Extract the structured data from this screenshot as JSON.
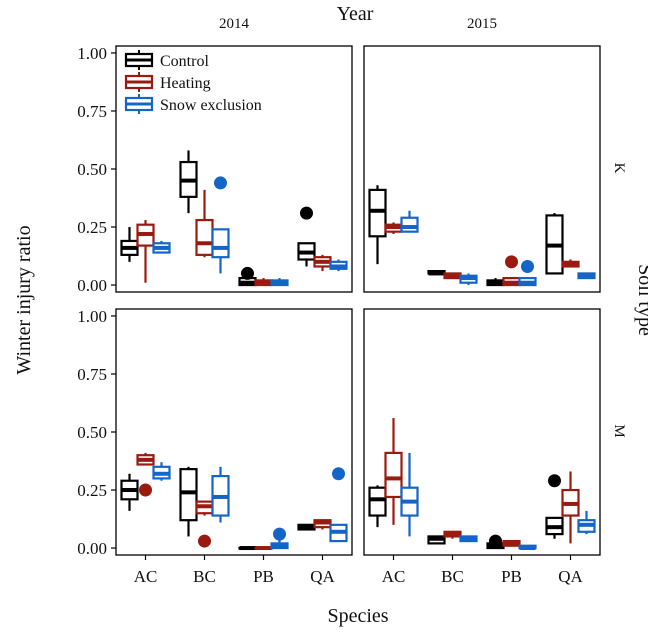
{
  "chart_data": {
    "type": "boxplot",
    "title": "",
    "column_facet_label": "Year",
    "row_facet_label": "Soil type",
    "columns": [
      "2014",
      "2015"
    ],
    "rows": [
      "K",
      "M"
    ],
    "xlabel": "Species",
    "ylabel": "Winter injury ratio",
    "categories": [
      "AC",
      "BC",
      "PB",
      "QA"
    ],
    "y_ticks": [
      "0.00",
      "0.25",
      "0.50",
      "0.75",
      "1.00"
    ],
    "ylim": [
      -0.03,
      1.03
    ],
    "grid": false,
    "legend_position": "top-left",
    "series": [
      {
        "name": "Control",
        "color": "#000000"
      },
      {
        "name": "Heating",
        "color": "#9b1a10"
      },
      {
        "name": "Snow exclusion",
        "color": "#1565c8"
      }
    ],
    "panels": [
      {
        "column": "2014",
        "row": "K",
        "boxes": [
          {
            "cat": "AC",
            "series": "Control",
            "min": 0.1,
            "q1": 0.13,
            "median": 0.16,
            "q3": 0.19,
            "max": 0.25,
            "outliers": []
          },
          {
            "cat": "AC",
            "series": "Heating",
            "min": 0.01,
            "q1": 0.17,
            "median": 0.22,
            "q3": 0.26,
            "max": 0.28,
            "outliers": []
          },
          {
            "cat": "AC",
            "series": "Snow exclusion",
            "min": 0.14,
            "q1": 0.14,
            "median": 0.16,
            "q3": 0.18,
            "max": 0.19,
            "outliers": []
          },
          {
            "cat": "BC",
            "series": "Control",
            "min": 0.31,
            "q1": 0.38,
            "median": 0.45,
            "q3": 0.53,
            "max": 0.58,
            "outliers": []
          },
          {
            "cat": "BC",
            "series": "Heating",
            "min": 0.12,
            "q1": 0.13,
            "median": 0.18,
            "q3": 0.28,
            "max": 0.41,
            "outliers": []
          },
          {
            "cat": "BC",
            "series": "Snow exclusion",
            "min": 0.05,
            "q1": 0.12,
            "median": 0.16,
            "q3": 0.24,
            "max": 0.24,
            "outliers": [
              0.44
            ]
          },
          {
            "cat": "PB",
            "series": "Control",
            "min": 0.0,
            "q1": 0.0,
            "median": 0.01,
            "q3": 0.03,
            "max": 0.03,
            "outliers": [
              0.05
            ]
          },
          {
            "cat": "PB",
            "series": "Heating",
            "min": 0.0,
            "q1": 0.0,
            "median": 0.01,
            "q3": 0.02,
            "max": 0.03,
            "outliers": []
          },
          {
            "cat": "PB",
            "series": "Snow exclusion",
            "min": 0.0,
            "q1": 0.0,
            "median": 0.01,
            "q3": 0.02,
            "max": 0.03,
            "outliers": []
          },
          {
            "cat": "QA",
            "series": "Control",
            "min": 0.08,
            "q1": 0.11,
            "median": 0.14,
            "q3": 0.18,
            "max": 0.18,
            "outliers": [
              0.31
            ]
          },
          {
            "cat": "QA",
            "series": "Heating",
            "min": 0.06,
            "q1": 0.08,
            "median": 0.1,
            "q3": 0.12,
            "max": 0.13,
            "outliers": []
          },
          {
            "cat": "QA",
            "series": "Snow exclusion",
            "min": 0.06,
            "q1": 0.07,
            "median": 0.08,
            "q3": 0.1,
            "max": 0.11,
            "outliers": []
          }
        ]
      },
      {
        "column": "2015",
        "row": "K",
        "boxes": [
          {
            "cat": "AC",
            "series": "Control",
            "min": 0.09,
            "q1": 0.21,
            "median": 0.32,
            "q3": 0.41,
            "max": 0.43,
            "outliers": []
          },
          {
            "cat": "AC",
            "series": "Heating",
            "min": 0.22,
            "q1": 0.23,
            "median": 0.25,
            "q3": 0.26,
            "max": 0.27,
            "outliers": []
          },
          {
            "cat": "AC",
            "series": "Snow exclusion",
            "min": 0.23,
            "q1": 0.23,
            "median": 0.25,
            "q3": 0.29,
            "max": 0.32,
            "outliers": []
          },
          {
            "cat": "BC",
            "series": "Control",
            "min": 0.05,
            "q1": 0.05,
            "median": 0.05,
            "q3": 0.06,
            "max": 0.06,
            "outliers": []
          },
          {
            "cat": "BC",
            "series": "Heating",
            "min": 0.03,
            "q1": 0.03,
            "median": 0.04,
            "q3": 0.05,
            "max": 0.05,
            "outliers": []
          },
          {
            "cat": "BC",
            "series": "Snow exclusion",
            "min": 0.0,
            "q1": 0.01,
            "median": 0.03,
            "q3": 0.04,
            "max": 0.05,
            "outliers": []
          },
          {
            "cat": "PB",
            "series": "Control",
            "min": 0.0,
            "q1": 0.0,
            "median": 0.01,
            "q3": 0.02,
            "max": 0.03,
            "outliers": []
          },
          {
            "cat": "PB",
            "series": "Heating",
            "min": 0.0,
            "q1": 0.0,
            "median": 0.01,
            "q3": 0.03,
            "max": 0.03,
            "outliers": [
              0.1
            ]
          },
          {
            "cat": "PB",
            "series": "Snow exclusion",
            "min": 0.0,
            "q1": 0.0,
            "median": 0.01,
            "q3": 0.03,
            "max": 0.03,
            "outliers": [
              0.08
            ]
          },
          {
            "cat": "QA",
            "series": "Control",
            "min": 0.05,
            "q1": 0.05,
            "median": 0.17,
            "q3": 0.3,
            "max": 0.31,
            "outliers": []
          },
          {
            "cat": "QA",
            "series": "Heating",
            "min": 0.08,
            "q1": 0.08,
            "median": 0.09,
            "q3": 0.1,
            "max": 0.11,
            "outliers": []
          },
          {
            "cat": "QA",
            "series": "Snow exclusion",
            "min": 0.03,
            "q1": 0.03,
            "median": 0.04,
            "q3": 0.05,
            "max": 0.05,
            "outliers": []
          }
        ]
      },
      {
        "column": "2014",
        "row": "M",
        "boxes": [
          {
            "cat": "AC",
            "series": "Control",
            "min": 0.16,
            "q1": 0.21,
            "median": 0.25,
            "q3": 0.29,
            "max": 0.32,
            "outliers": []
          },
          {
            "cat": "AC",
            "series": "Heating",
            "min": 0.36,
            "q1": 0.36,
            "median": 0.38,
            "q3": 0.4,
            "max": 0.41,
            "outliers": [
              0.25
            ]
          },
          {
            "cat": "AC",
            "series": "Snow exclusion",
            "min": 0.29,
            "q1": 0.3,
            "median": 0.32,
            "q3": 0.35,
            "max": 0.37,
            "outliers": []
          },
          {
            "cat": "BC",
            "series": "Control",
            "min": 0.05,
            "q1": 0.12,
            "median": 0.24,
            "q3": 0.34,
            "max": 0.35,
            "outliers": []
          },
          {
            "cat": "BC",
            "series": "Heating",
            "min": 0.14,
            "q1": 0.15,
            "median": 0.18,
            "q3": 0.2,
            "max": 0.2,
            "outliers": [
              0.03
            ]
          },
          {
            "cat": "BC",
            "series": "Snow exclusion",
            "min": 0.11,
            "q1": 0.14,
            "median": 0.22,
            "q3": 0.31,
            "max": 0.35,
            "outliers": []
          },
          {
            "cat": "PB",
            "series": "Control",
            "min": 0.0,
            "q1": 0.0,
            "median": 0.0,
            "q3": 0.0,
            "max": 0.0,
            "outliers": []
          },
          {
            "cat": "PB",
            "series": "Heating",
            "min": 0.0,
            "q1": 0.0,
            "median": 0.0,
            "q3": 0.0,
            "max": 0.0,
            "outliers": []
          },
          {
            "cat": "PB",
            "series": "Snow exclusion",
            "min": 0.0,
            "q1": 0.0,
            "median": 0.01,
            "q3": 0.02,
            "max": 0.04,
            "outliers": [
              0.06
            ]
          },
          {
            "cat": "QA",
            "series": "Control",
            "min": 0.08,
            "q1": 0.08,
            "median": 0.09,
            "q3": 0.1,
            "max": 0.1,
            "outliers": []
          },
          {
            "cat": "QA",
            "series": "Heating",
            "min": 0.08,
            "q1": 0.09,
            "median": 0.11,
            "q3": 0.12,
            "max": 0.12,
            "outliers": []
          },
          {
            "cat": "QA",
            "series": "Snow exclusion",
            "min": 0.03,
            "q1": 0.03,
            "median": 0.07,
            "q3": 0.1,
            "max": 0.1,
            "outliers": [
              0.32
            ]
          }
        ]
      },
      {
        "column": "2015",
        "row": "M",
        "boxes": [
          {
            "cat": "AC",
            "series": "Control",
            "min": 0.09,
            "q1": 0.14,
            "median": 0.21,
            "q3": 0.26,
            "max": 0.27,
            "outliers": []
          },
          {
            "cat": "AC",
            "series": "Heating",
            "min": 0.1,
            "q1": 0.22,
            "median": 0.3,
            "q3": 0.41,
            "max": 0.56,
            "outliers": []
          },
          {
            "cat": "AC",
            "series": "Snow exclusion",
            "min": 0.05,
            "q1": 0.14,
            "median": 0.2,
            "q3": 0.26,
            "max": 0.41,
            "outliers": []
          },
          {
            "cat": "BC",
            "series": "Control",
            "min": 0.02,
            "q1": 0.02,
            "median": 0.04,
            "q3": 0.05,
            "max": 0.05,
            "outliers": []
          },
          {
            "cat": "BC",
            "series": "Heating",
            "min": 0.04,
            "q1": 0.05,
            "median": 0.06,
            "q3": 0.07,
            "max": 0.07,
            "outliers": []
          },
          {
            "cat": "BC",
            "series": "Snow exclusion",
            "min": 0.03,
            "q1": 0.03,
            "median": 0.04,
            "q3": 0.05,
            "max": 0.05,
            "outliers": []
          },
          {
            "cat": "PB",
            "series": "Control",
            "min": 0.0,
            "q1": 0.0,
            "median": 0.01,
            "q3": 0.02,
            "max": 0.02,
            "outliers": [
              0.03
            ]
          },
          {
            "cat": "PB",
            "series": "Heating",
            "min": 0.01,
            "q1": 0.01,
            "median": 0.02,
            "q3": 0.03,
            "max": 0.03,
            "outliers": []
          },
          {
            "cat": "PB",
            "series": "Snow exclusion",
            "min": 0.0,
            "q1": 0.0,
            "median": 0.0,
            "q3": 0.01,
            "max": 0.01,
            "outliers": []
          },
          {
            "cat": "QA",
            "series": "Control",
            "min": 0.04,
            "q1": 0.06,
            "median": 0.09,
            "q3": 0.13,
            "max": 0.13,
            "outliers": [
              0.29
            ]
          },
          {
            "cat": "QA",
            "series": "Heating",
            "min": 0.02,
            "q1": 0.14,
            "median": 0.19,
            "q3": 0.25,
            "max": 0.33,
            "outliers": []
          },
          {
            "cat": "QA",
            "series": "Snow exclusion",
            "min": 0.06,
            "q1": 0.07,
            "median": 0.1,
            "q3": 0.12,
            "max": 0.16,
            "outliers": []
          }
        ]
      }
    ]
  }
}
